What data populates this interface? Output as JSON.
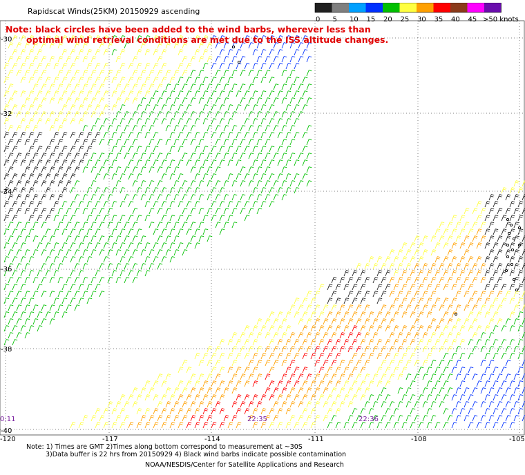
{
  "title": "Rapidscat Winds(25KM) 20150929 ascending",
  "note": {
    "line1": "Note: black circles have been added to the wind barbs, wherever less than",
    "line2": "optimal wind retrieval conditions are met due to the ISS altitude changes."
  },
  "legend": {
    "labels": [
      "0",
      "5",
      "10",
      "15",
      "20",
      "25",
      "30",
      "35",
      "40",
      "45",
      ">50 knots"
    ],
    "colors": [
      "#202020",
      "#7f7f7f",
      "#00a0ff",
      "#0030ff",
      "#00c000",
      "#ffff40",
      "#ffa000",
      "#ff0000",
      "#8b3a1a",
      "#ff00ff",
      "#6a0dad"
    ]
  },
  "axes": {
    "lat_labels": [
      "-30",
      "-32",
      "-34",
      "-36",
      "-38",
      "-40"
    ],
    "lon_labels": [
      "-120",
      "-117",
      "-114",
      "-111",
      "-108",
      "-105"
    ]
  },
  "times": [
    "0:11",
    "22:35",
    "22:36"
  ],
  "footnotes": {
    "line1": "Note: 1) Times are GMT 2)Times along bottom correspond to measurement at ~30S",
    "line2": "3)Data buffer is 22 hrs from 20150929 4) Black wind barbs indicate possible contamination",
    "credit": "NOAA/NESDIS/Center for Satellite Applications and Research"
  },
  "colors": {
    "calm": "#202020",
    "green": "#00c000",
    "yellow": "#ffff40",
    "orange": "#ffa000",
    "red": "#ff0000",
    "brown": "#8b3a1a",
    "blue": "#0030ff",
    "note_red": "#e00000",
    "time_purple": "#7a1fa0"
  }
}
